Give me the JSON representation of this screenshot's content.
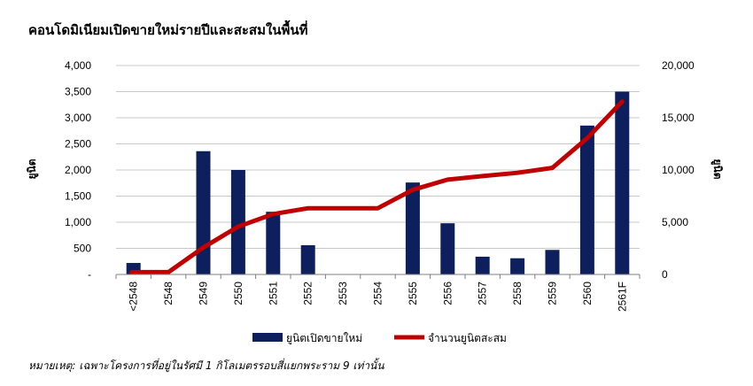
{
  "title": "คอนโดมิเนียมเปิดขายใหม่รายปีและสะสมในพื้นที่",
  "note": "หมายเหตุ: เฉพาะโครงการที่อยู่ในรัศมี 1 กิโลเมตรรอบสี่แยกพระราม 9 เท่านั้น",
  "chart_data": {
    "type": "bar",
    "categories": [
      "<2548",
      "2548",
      "2549",
      "2550",
      "2551",
      "2552",
      "2553",
      "2554",
      "2555",
      "2556",
      "2557",
      "2558",
      "2559",
      "2560",
      "2561F"
    ],
    "series": [
      {
        "name": "ยูนิตเปิดขายใหม่",
        "type": "bar",
        "axis": "left",
        "color": "#0d1f5c",
        "values": [
          220,
          0,
          2360,
          2000,
          1200,
          560,
          0,
          0,
          1760,
          980,
          340,
          310,
          470,
          2850,
          3500
        ]
      },
      {
        "name": "จำนวนยูนิตสะสม",
        "type": "line",
        "axis": "right",
        "color": "#c00000",
        "values": [
          220,
          220,
          2580,
          4580,
          5780,
          6340,
          6340,
          6340,
          8100,
          9080,
          9420,
          9730,
          10200,
          13050,
          16550
        ]
      }
    ],
    "ylabel_left": "ยูนิต",
    "ylabel_right": "ยูนิต",
    "ylim_left": [
      0,
      4000
    ],
    "yticks_left": [
      "-",
      "500",
      "1,000",
      "1,500",
      "2,000",
      "2,500",
      "3,000",
      "3,500",
      "4,000"
    ],
    "ylim_right": [
      0,
      20000
    ],
    "yticks_right": [
      "0",
      "5,000",
      "10,000",
      "15,000",
      "20,000"
    ],
    "grid": true,
    "legend_position": "bottom"
  }
}
